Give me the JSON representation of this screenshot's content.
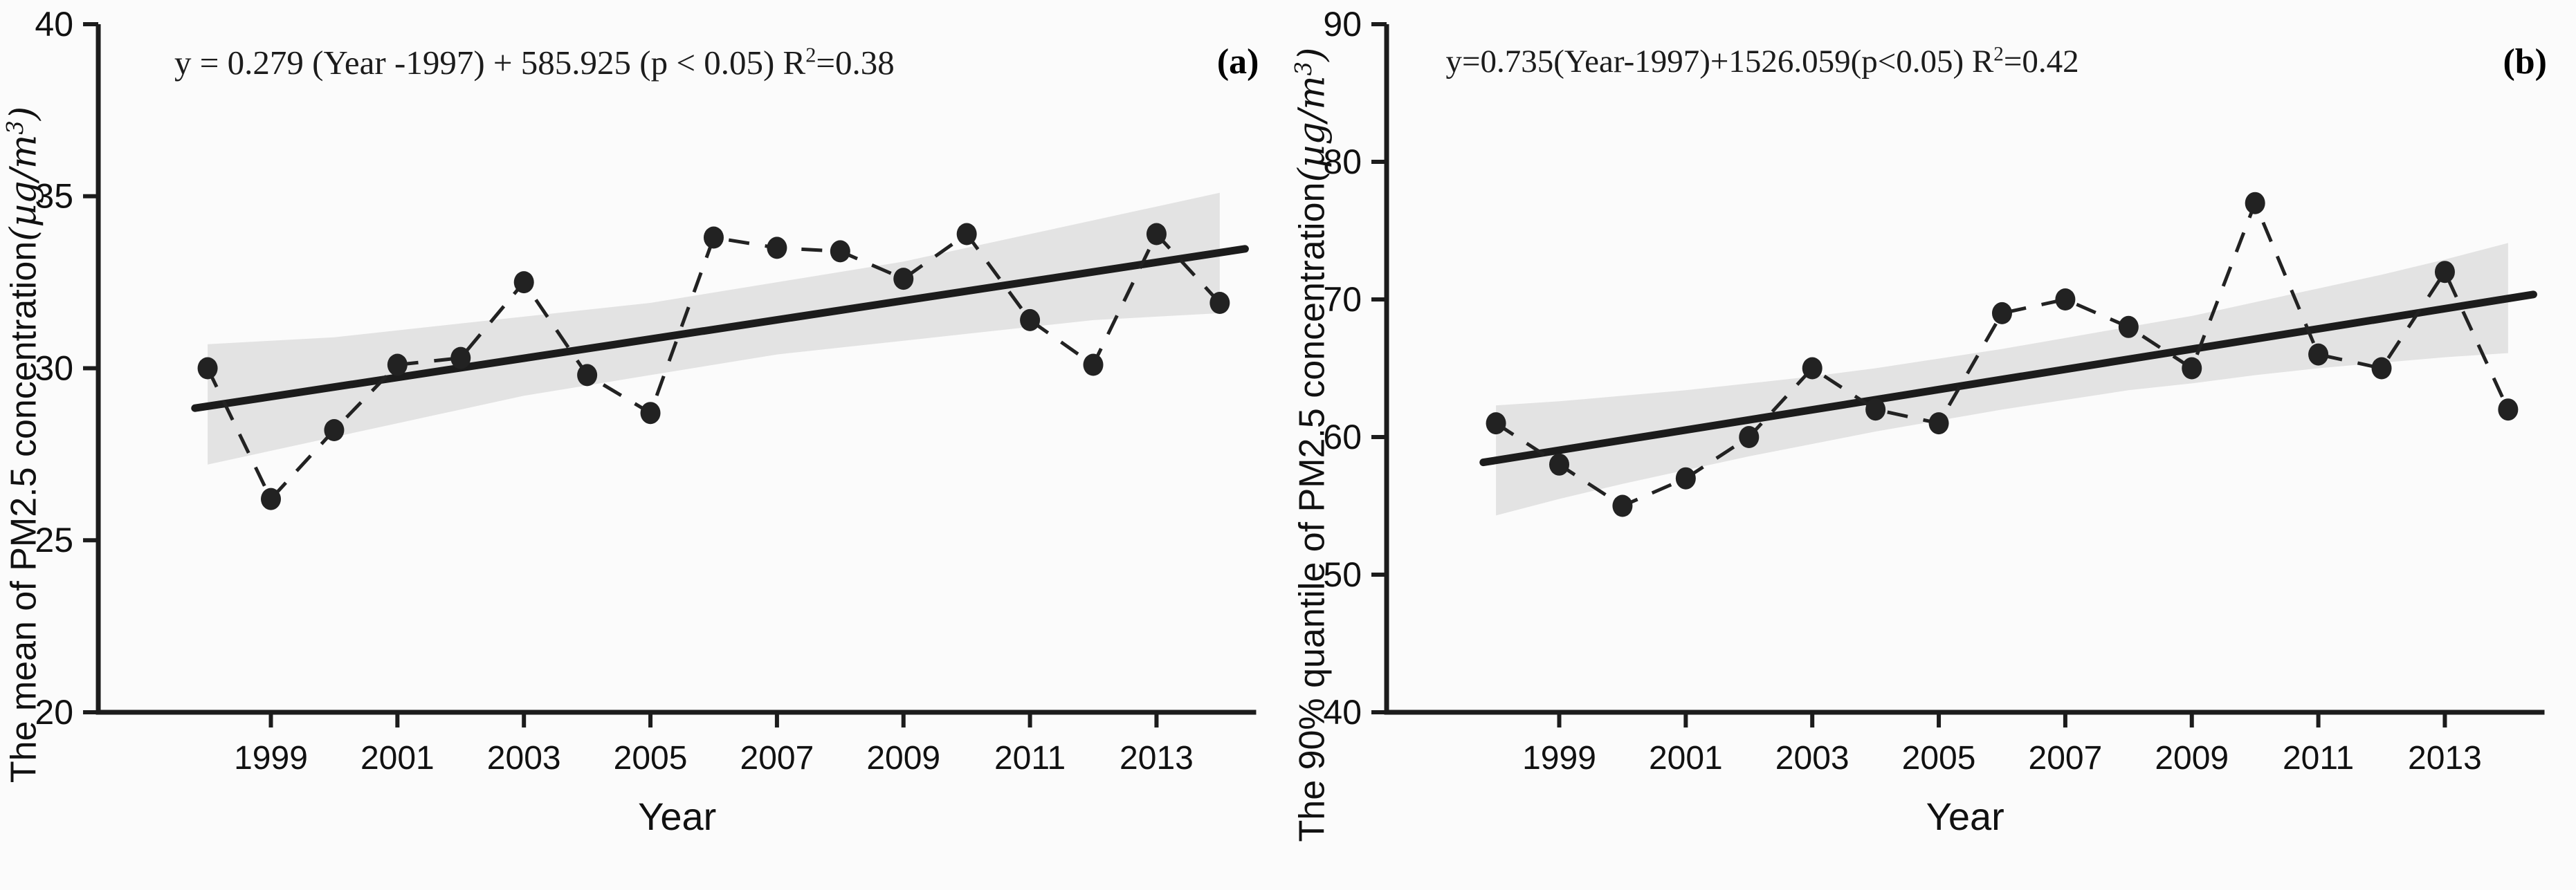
{
  "figure": {
    "background": "#fbfbfb",
    "ink_color": "#1c1c1c",
    "marker_color": "#222222",
    "band_color": "#e3e3e3"
  },
  "chart_data": [
    {
      "type": "line",
      "panel_label": "(a)",
      "equation_full": "y = 0.279 (Year -1997) + 585.925 (p < 0.05) R²=0.38",
      "equation_parts": {
        "base": "y = 0.279 (Year -1997) + 585.925 (p < 0.05) R",
        "sup": "2",
        "rest": "=0.38"
      },
      "xlabel": "Year",
      "ylabel_full": "The mean of PM2.5 concentration(µg/m³)",
      "ylabel_parts": {
        "text": "The mean of PM2.5 concentration",
        "unit_open": "(µg/m",
        "unit_sup": "3",
        "unit_close": ")"
      },
      "x": [
        1998,
        1999,
        2000,
        2001,
        2002,
        2003,
        2004,
        2005,
        2006,
        2007,
        2008,
        2009,
        2010,
        2011,
        2012,
        2013,
        2014
      ],
      "xticks": [
        1999,
        2001,
        2003,
        2005,
        2007,
        2009,
        2011,
        2013
      ],
      "ylim": [
        20,
        40
      ],
      "yticks": [
        20,
        25,
        30,
        35,
        40
      ],
      "grid": false,
      "legend": "none",
      "series": [
        {
          "name": "annual mean PM2.5",
          "style": "dashed-with-markers",
          "values": [
            30.0,
            26.2,
            28.2,
            30.1,
            30.3,
            32.5,
            29.8,
            28.7,
            33.8,
            33.5,
            33.4,
            32.6,
            33.9,
            31.4,
            30.1,
            33.9,
            31.9
          ]
        },
        {
          "name": "linear trend",
          "style": "solid-thick",
          "x_start": 1997.8,
          "y_start": 28.84,
          "x_end": 2014.4,
          "y_end": 33.47
        }
      ],
      "confidence_band": {
        "lo": [
          27.2,
          27.6,
          28.0,
          28.4,
          28.8,
          29.2,
          29.5,
          29.8,
          30.1,
          30.4,
          30.6,
          30.8,
          31.0,
          31.2,
          31.4,
          31.5,
          31.6
        ],
        "hi": [
          30.7,
          30.8,
          30.9,
          31.1,
          31.3,
          31.5,
          31.7,
          31.9,
          32.2,
          32.5,
          32.8,
          33.1,
          33.5,
          33.9,
          34.3,
          34.7,
          35.1
        ]
      },
      "regression": {
        "slope": 0.279,
        "reference_year": 1997,
        "intercept_shown": "585.925",
        "p_label": "p < 0.05",
        "r_squared": 0.38
      }
    },
    {
      "type": "line",
      "panel_label": "(b)",
      "equation_full": "y=0.735(Year-1997)+1526.059(p<0.05) R²=0.42",
      "equation_parts": {
        "base": "y=0.735(Year-1997)+1526.059(p<0.05) R",
        "sup": "2",
        "rest": "=0.42"
      },
      "xlabel": "Year",
      "ylabel_full": "The 90% quantile of PM2.5 concentration(µg/m³)",
      "ylabel_parts": {
        "text": "The 90% quantile of PM2.5 concentration",
        "unit_open": "(µg/m",
        "unit_sup": "3",
        "unit_close": ")"
      },
      "x": [
        1998,
        1999,
        2000,
        2001,
        2002,
        2003,
        2004,
        2005,
        2006,
        2007,
        2008,
        2009,
        2010,
        2011,
        2012,
        2013,
        2014
      ],
      "xticks": [
        1999,
        2001,
        2003,
        2005,
        2007,
        2009,
        2011,
        2013
      ],
      "ylim": [
        40,
        90
      ],
      "yticks": [
        40,
        50,
        60,
        70,
        80,
        90
      ],
      "grid": false,
      "legend": "none",
      "series": [
        {
          "name": "annual 90% quantile PM2.5",
          "style": "dashed-with-markers",
          "values": [
            61,
            58,
            55,
            57,
            60,
            65,
            62,
            61,
            69,
            70,
            68,
            65,
            77,
            66,
            65,
            72,
            62
          ]
        },
        {
          "name": "linear trend",
          "style": "solid-thick",
          "x_start": 1997.8,
          "y_start": 58.16,
          "x_end": 2014.4,
          "y_end": 70.36
        }
      ],
      "confidence_band": {
        "lo": [
          54.3,
          55.5,
          56.6,
          57.6,
          58.6,
          59.5,
          60.4,
          61.2,
          62.0,
          62.7,
          63.4,
          63.9,
          64.5,
          65.0,
          65.4,
          65.8,
          66.1
        ],
        "hi": [
          62.3,
          62.6,
          63.0,
          63.4,
          63.9,
          64.4,
          65.0,
          65.7,
          66.4,
          67.2,
          68.0,
          68.8,
          69.8,
          70.8,
          71.8,
          72.9,
          74.1
        ]
      },
      "regression": {
        "slope": 0.735,
        "reference_year": 1997,
        "intercept_shown": "1526.059",
        "p_label": "p<0.05",
        "r_squared": 0.42
      }
    }
  ]
}
